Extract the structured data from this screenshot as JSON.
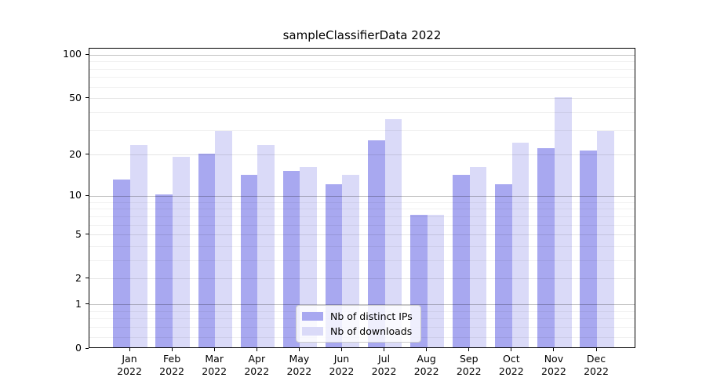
{
  "title": "sampleClassifierData 2022",
  "colors": {
    "bar_dark": "#a8a8f0",
    "bar_light": "#dadaf8",
    "grid_major": "rgba(0,0,0,0.24)",
    "grid_mid": "rgba(0,0,0,0.10)",
    "grid_minor": "rgba(0,0,0,0.055)",
    "spine": "#000000"
  },
  "legend": {
    "items": [
      {
        "label": "Nb of distinct IPs",
        "color_key": "bar_dark"
      },
      {
        "label": "Nb of downloads",
        "color_key": "bar_light"
      }
    ]
  },
  "y_axis": {
    "scale": "log1p",
    "tick_values": [
      100,
      50,
      20,
      10,
      5,
      2,
      1,
      0
    ],
    "tick_labels": [
      "100",
      "50",
      "20",
      "10",
      "5",
      "2",
      "1",
      "0"
    ],
    "major_gridlines": [
      1,
      10,
      100
    ],
    "mid_gridlines": [
      2,
      5,
      20,
      50
    ],
    "minor_gridlines": [
      0.2,
      0.4,
      0.6,
      0.8,
      3,
      4,
      6,
      7,
      8,
      9,
      30,
      40,
      60,
      70,
      80,
      90
    ]
  },
  "chart_data": {
    "type": "bar",
    "title": "sampleClassifierData 2022",
    "categories": [
      "Jan 2022",
      "Feb 2022",
      "Mar 2022",
      "Apr 2022",
      "May 2022",
      "Jun 2022",
      "Jul 2022",
      "Aug 2022",
      "Sep 2022",
      "Oct 2022",
      "Nov 2022",
      "Dec 2022"
    ],
    "series": [
      {
        "name": "Nb of distinct IPs",
        "values": [
          13,
          10,
          20,
          14,
          15,
          12,
          25,
          7,
          14,
          12,
          22,
          21
        ]
      },
      {
        "name": "Nb of downloads",
        "values": [
          23,
          19,
          29,
          23,
          16,
          14,
          35,
          7,
          16,
          24,
          50,
          29
        ]
      }
    ],
    "xlabel": "",
    "ylabel": "",
    "yscale": "log1p",
    "ylim": [
      0,
      111
    ],
    "grid": "horizontal, major and minor",
    "legend_position": "lower center, inside axes"
  }
}
